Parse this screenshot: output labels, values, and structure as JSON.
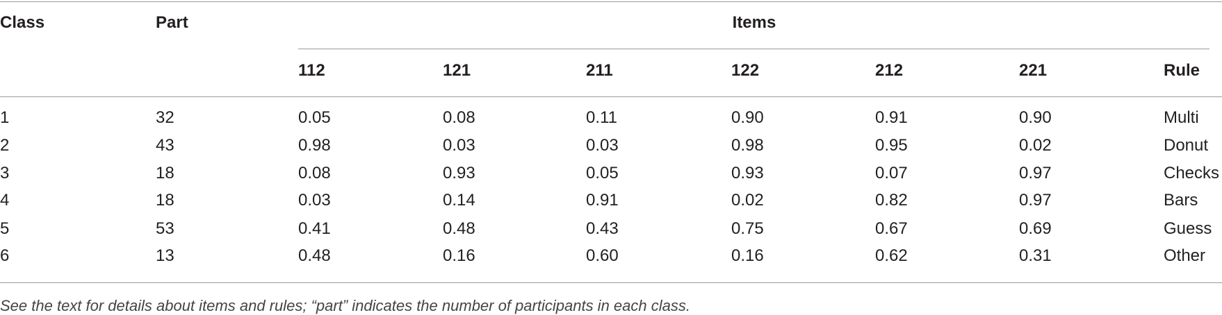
{
  "table": {
    "header": {
      "class": "Class",
      "part": "Part",
      "items": "Items",
      "item_columns": [
        "112",
        "121",
        "211",
        "122",
        "212",
        "221"
      ],
      "rule": "Rule"
    },
    "rows": [
      [
        "1",
        "32",
        "0.05",
        "0.08",
        "0.11",
        "0.90",
        "0.91",
        "0.90",
        "Multi"
      ],
      [
        "2",
        "43",
        "0.98",
        "0.03",
        "0.03",
        "0.98",
        "0.95",
        "0.02",
        "Donut"
      ],
      [
        "3",
        "18",
        "0.08",
        "0.93",
        "0.05",
        "0.93",
        "0.07",
        "0.97",
        "Checks"
      ],
      [
        "4",
        "18",
        "0.03",
        "0.14",
        "0.91",
        "0.02",
        "0.82",
        "0.97",
        "Bars"
      ],
      [
        "5",
        "53",
        "0.41",
        "0.48",
        "0.43",
        "0.75",
        "0.67",
        "0.69",
        "Guess"
      ],
      [
        "6",
        "13",
        "0.48",
        "0.16",
        "0.60",
        "0.16",
        "0.62",
        "0.31",
        "Other"
      ]
    ]
  },
  "footnote": "See the text for details about items and rules; “part” indicates the number of participants in each class."
}
